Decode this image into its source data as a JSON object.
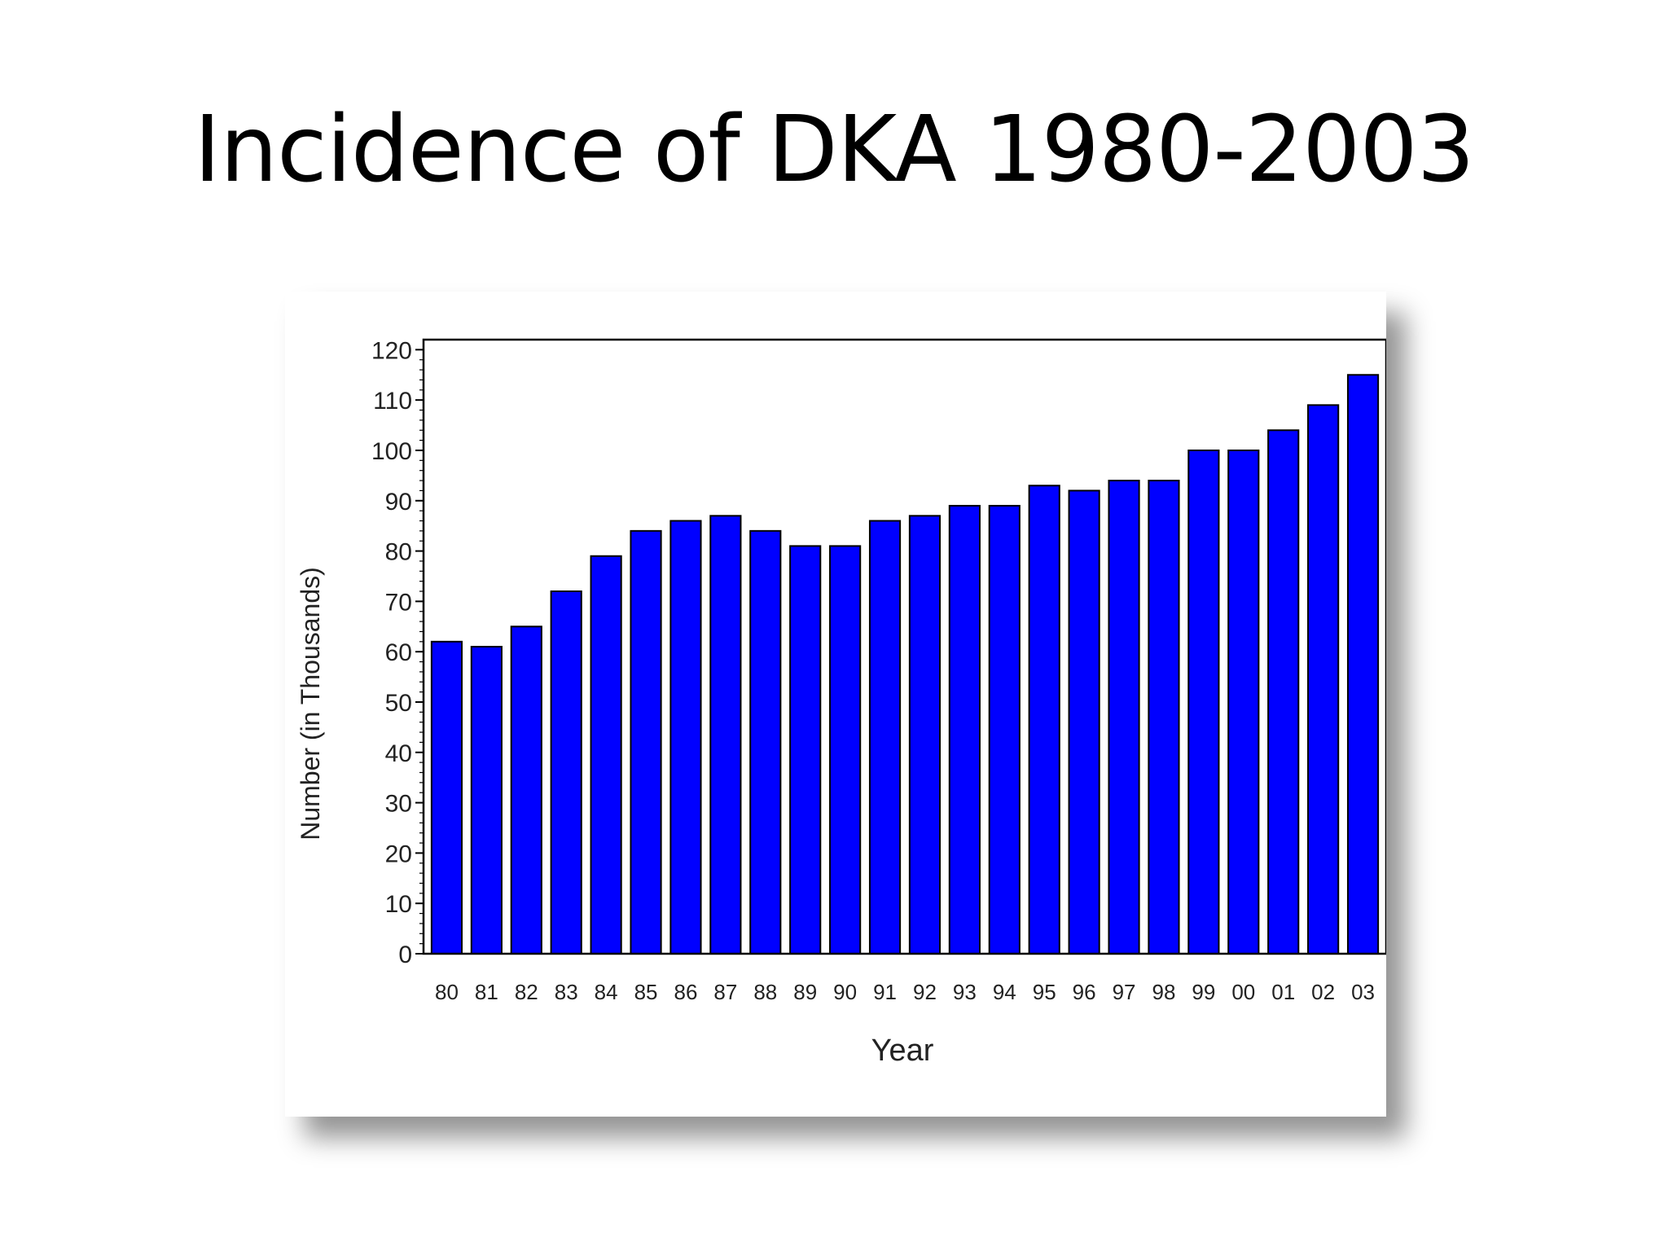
{
  "slide": {
    "title": "Incidence of DKA 1980-2003"
  },
  "chart_data": {
    "type": "bar",
    "title": "",
    "xlabel": "Year",
    "ylabel": "Number (in Thousands)",
    "ylim": [
      0,
      122
    ],
    "yticks": [
      0,
      10,
      20,
      30,
      40,
      50,
      60,
      70,
      80,
      90,
      100,
      110,
      120
    ],
    "grid": false,
    "legend": "none",
    "bar_color": "#0000ff",
    "categories": [
      "80",
      "81",
      "82",
      "83",
      "84",
      "85",
      "86",
      "87",
      "88",
      "89",
      "90",
      "91",
      "92",
      "93",
      "94",
      "95",
      "96",
      "97",
      "98",
      "99",
      "00",
      "01",
      "02",
      "03"
    ],
    "values": [
      62,
      61,
      65,
      72,
      79,
      84,
      86,
      87,
      84,
      81,
      81,
      86,
      87,
      89,
      89,
      93,
      92,
      94,
      94,
      100,
      100,
      104,
      109,
      115
    ]
  }
}
